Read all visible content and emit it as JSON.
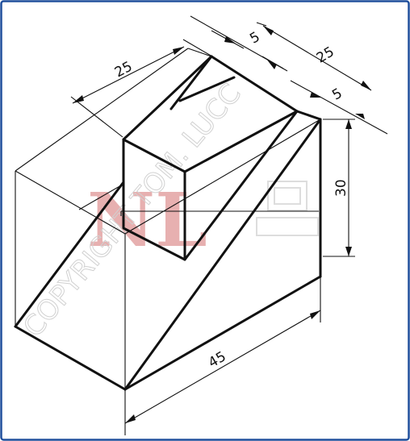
{
  "dimensions": {
    "top_length": "25",
    "offset_a": "5",
    "depth": "25",
    "offset_b": "5",
    "height": "30",
    "base_length": "45"
  },
  "watermark": {
    "logo": "NL",
    "text": "COPYRIGHT TOM. LUCC"
  },
  "colors": {
    "frame": "#1f4e9c",
    "line": "#111111",
    "watermark_logo": "#e3a3a3",
    "watermark_text": "#c9c9c9"
  }
}
